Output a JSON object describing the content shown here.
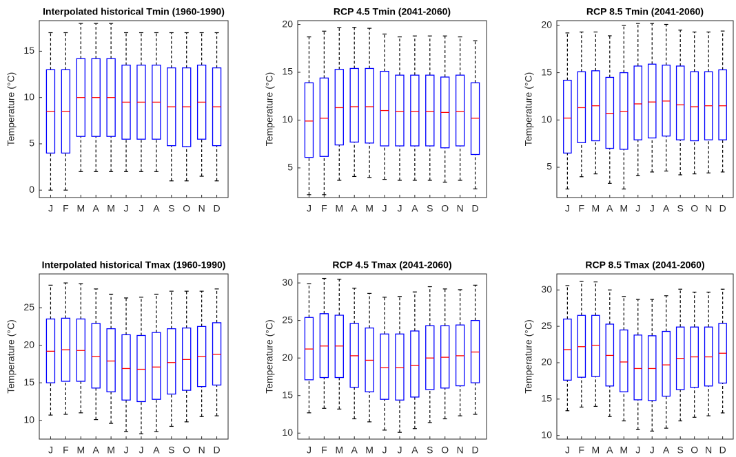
{
  "chart_data": [
    {
      "type": "box",
      "title": "Interpolated historical Tmin (1960-1990)",
      "y_label": "Temperature (°C)",
      "categories": [
        "J",
        "F",
        "M",
        "A",
        "M",
        "J",
        "J",
        "A",
        "S",
        "O",
        "N",
        "D"
      ],
      "min": [
        0,
        0,
        2,
        2,
        2,
        2,
        2,
        2,
        1,
        1,
        1.5,
        1
      ],
      "q1": [
        4,
        4,
        5.8,
        5.8,
        5.8,
        5.5,
        5.5,
        5.5,
        4.8,
        4.7,
        5.5,
        4.8
      ],
      "median": [
        8.5,
        8.5,
        10,
        10,
        10,
        9.5,
        9.5,
        9.5,
        9,
        9,
        9.5,
        9
      ],
      "q3": [
        13,
        13,
        14.2,
        14.2,
        14.2,
        13.5,
        13.5,
        13.5,
        13.2,
        13.2,
        13.5,
        13.2
      ],
      "max": [
        17,
        17,
        18,
        18,
        18,
        17,
        17,
        17,
        17,
        17,
        17,
        17
      ],
      "ylim": [
        -0.8,
        18.3
      ],
      "yticks": [
        0,
        5,
        10,
        15
      ],
      "box_color": "#0000ff",
      "median_color": "#ff0000",
      "whisker_color": "#000000"
    },
    {
      "type": "box",
      "title": "RCP 4.5 Tmin (2041-2060)",
      "y_label": "Temperature (°C)",
      "categories": [
        "J",
        "F",
        "M",
        "A",
        "M",
        "J",
        "J",
        "A",
        "S",
        "O",
        "N",
        "D"
      ],
      "min": [
        2.2,
        2.2,
        3.7,
        4.1,
        4,
        3.8,
        3.7,
        3.7,
        3.7,
        3.5,
        3.7,
        2.8
      ],
      "q1": [
        6.1,
        6.2,
        7.4,
        7.7,
        7.6,
        7.3,
        7.3,
        7.3,
        7.3,
        7.1,
        7.3,
        6.4
      ],
      "median": [
        9.9,
        10.2,
        11.3,
        11.4,
        11.4,
        11,
        10.9,
        10.9,
        10.9,
        10.8,
        10.9,
        10.2
      ],
      "q3": [
        13.9,
        14.4,
        15.3,
        15.4,
        15.4,
        15.1,
        14.7,
        14.7,
        14.7,
        14.5,
        14.7,
        13.9
      ],
      "max": [
        18.7,
        19.3,
        19.7,
        19.7,
        19.6,
        19,
        18.7,
        18.8,
        18.8,
        18.8,
        18.7,
        18.3
      ],
      "ylim": [
        1.9,
        20.4
      ],
      "yticks": [
        5,
        10,
        15,
        20
      ],
      "box_color": "#0000ff",
      "median_color": "#ff0000",
      "whisker_color": "#000000"
    },
    {
      "type": "box",
      "title": "RCP 8.5 Tmin (2041-2060)",
      "y_label": "Temperature (°C)",
      "categories": [
        "J",
        "F",
        "M",
        "A",
        "M",
        "J",
        "J",
        "A",
        "S",
        "O",
        "N",
        "D"
      ],
      "min": [
        2.7,
        4,
        4.3,
        3.3,
        2.7,
        4.1,
        4.5,
        4.6,
        4.2,
        4.3,
        4.4,
        4.5
      ],
      "q1": [
        6.5,
        7.6,
        7.8,
        7,
        6.9,
        7.9,
        8.1,
        8.3,
        7.9,
        7.8,
        7.9,
        7.9
      ],
      "median": [
        10.2,
        11.3,
        11.5,
        10.7,
        10.9,
        11.7,
        11.9,
        12,
        11.6,
        11.4,
        11.5,
        11.5
      ],
      "q3": [
        14.2,
        15.1,
        15.2,
        14.5,
        15,
        15.7,
        15.9,
        15.8,
        15.7,
        15.1,
        15.1,
        15.3
      ],
      "max": [
        19.2,
        19.3,
        19.3,
        18.9,
        20,
        20.2,
        20.2,
        20.1,
        19.5,
        19.3,
        19.3,
        19.4
      ],
      "ylim": [
        1.8,
        20.5
      ],
      "yticks": [
        5,
        10,
        15,
        20
      ],
      "box_color": "#0000ff",
      "median_color": "#ff0000",
      "whisker_color": "#000000"
    },
    {
      "type": "box",
      "title": "Interpolated historical Tmax (1960-1990)",
      "y_label": "Temperature (°C)",
      "categories": [
        "J",
        "F",
        "M",
        "A",
        "M",
        "J",
        "J",
        "A",
        "S",
        "O",
        "N",
        "D"
      ],
      "min": [
        10.7,
        10.8,
        11,
        10.1,
        9.6,
        8.5,
        8.2,
        8.5,
        9.2,
        9.8,
        10.5,
        10.6
      ],
      "q1": [
        15,
        15.2,
        15.2,
        14.3,
        13.8,
        12.7,
        12.5,
        12.8,
        13.5,
        14,
        14.5,
        14.7
      ],
      "median": [
        19.2,
        19.4,
        19.3,
        18.5,
        17.9,
        16.9,
        16.8,
        17.1,
        17.7,
        18.1,
        18.5,
        18.8
      ],
      "q3": [
        23.5,
        23.6,
        23.5,
        22.9,
        22.2,
        21.4,
        21.3,
        21.7,
        22.2,
        22.3,
        22.5,
        23
      ],
      "max": [
        28,
        28.3,
        28.2,
        27.5,
        26.8,
        26.3,
        26.4,
        26.8,
        27.2,
        27.2,
        27.2,
        27.5
      ],
      "ylim": [
        7.5,
        29.5
      ],
      "yticks": [
        10,
        15,
        20,
        25
      ],
      "box_color": "#0000ff",
      "median_color": "#ff0000",
      "whisker_color": "#000000"
    },
    {
      "type": "box",
      "title": "RCP 4.5 Tmax (2041-2060)",
      "y_label": "Temperature (°C)",
      "categories": [
        "J",
        "F",
        "M",
        "A",
        "M",
        "J",
        "J",
        "A",
        "S",
        "O",
        "N",
        "D"
      ],
      "min": [
        12.7,
        13.3,
        13.2,
        11.9,
        11.5,
        10.4,
        10.1,
        10.6,
        11.4,
        11.9,
        12.3,
        12.5
      ],
      "q1": [
        17.1,
        17.4,
        17.4,
        16.1,
        15.5,
        14.5,
        14.4,
        14.8,
        15.8,
        16,
        16.3,
        16.7
      ],
      "median": [
        21.2,
        21.6,
        21.6,
        20.3,
        19.7,
        18.7,
        18.7,
        19,
        20,
        20.1,
        20.3,
        20.8
      ],
      "q3": [
        25.4,
        25.9,
        25.7,
        24.6,
        24,
        23.2,
        23.2,
        23.6,
        24.3,
        24.3,
        24.4,
        25
      ],
      "max": [
        29.9,
        30.6,
        30.5,
        29.3,
        28.6,
        28.1,
        28.2,
        28.8,
        29.5,
        29.2,
        29.1,
        29.7
      ],
      "ylim": [
        9.2,
        31.2
      ],
      "yticks": [
        10,
        15,
        20,
        25,
        30
      ],
      "box_color": "#0000ff",
      "median_color": "#ff0000",
      "whisker_color": "#000000"
    },
    {
      "type": "box",
      "title": "RCP 8.5 Tmax (2041-2060)",
      "y_label": "Temperature (°C)",
      "categories": [
        "J",
        "F",
        "M",
        "A",
        "M",
        "J",
        "J",
        "A",
        "S",
        "O",
        "N",
        "D"
      ],
      "min": [
        13.4,
        13.9,
        14,
        12.6,
        12,
        10.8,
        10.6,
        11,
        12,
        12.5,
        12.7,
        13.1
      ],
      "q1": [
        17.6,
        18,
        18.1,
        16.8,
        16,
        14.9,
        14.8,
        15.4,
        16.3,
        16.6,
        16.8,
        17.2
      ],
      "median": [
        21.8,
        22.2,
        22.4,
        21,
        20.1,
        19.2,
        19.2,
        19.7,
        20.6,
        20.8,
        20.8,
        21.3
      ],
      "q3": [
        26,
        26.5,
        26.5,
        25.3,
        24.5,
        23.8,
        23.7,
        24.3,
        24.9,
        24.9,
        24.9,
        25.4
      ],
      "max": [
        30.6,
        31.2,
        31.1,
        30,
        29.1,
        28.7,
        28.7,
        29.2,
        30.1,
        29.7,
        29.7,
        30.1
      ],
      "ylim": [
        9.5,
        32.2
      ],
      "yticks": [
        10,
        15,
        20,
        25,
        30
      ],
      "box_color": "#0000ff",
      "median_color": "#ff0000",
      "whisker_color": "#000000"
    }
  ]
}
